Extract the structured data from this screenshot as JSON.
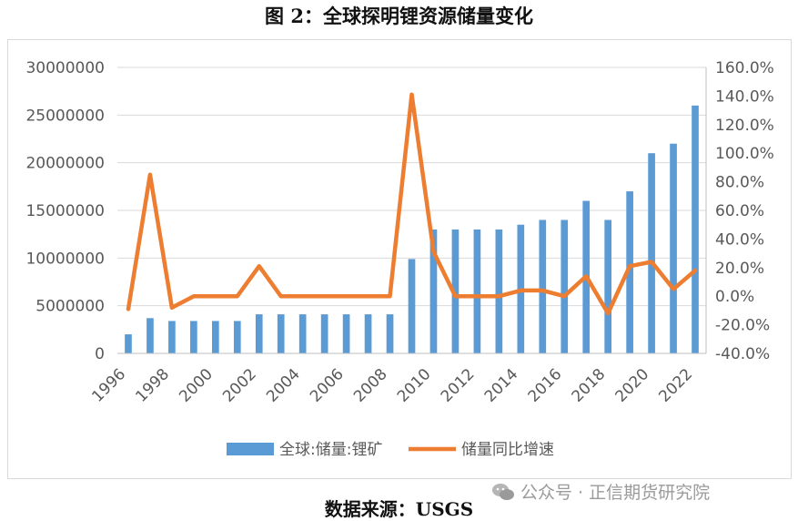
{
  "figure_title": "图 2：全球探明锂资源储量变化",
  "source_text": "数据来源：USGS",
  "watermark_text": "公众号 · 正信期货研究院",
  "colors": {
    "bar": "#5b9bd5",
    "line": "#ed7d31",
    "grid": "#d9d9d9",
    "text": "#595959"
  },
  "chart_data": {
    "type": "bar",
    "title": "",
    "xlabel": "",
    "ylabel": "",
    "x_tick_labels": [
      "1996",
      "1998",
      "2000",
      "2002",
      "2004",
      "2006",
      "2008",
      "2010",
      "2012",
      "2014",
      "2016",
      "2018",
      "2020",
      "2022"
    ],
    "years": [
      1996,
      1997,
      1998,
      1999,
      2000,
      2001,
      2002,
      2003,
      2004,
      2005,
      2006,
      2007,
      2008,
      2009,
      2010,
      2011,
      2012,
      2013,
      2014,
      2015,
      2016,
      2017,
      2018,
      2019,
      2020,
      2021,
      2022
    ],
    "ylim_left": [
      0,
      30000000
    ],
    "ylim_right": [
      -0.4,
      1.6
    ],
    "y_left_ticks": [
      "0",
      "5000000",
      "10000000",
      "15000000",
      "20000000",
      "25000000",
      "30000000"
    ],
    "y_right_ticks": [
      "-40.0%",
      "-20.0%",
      "0.0%",
      "20.0%",
      "40.0%",
      "60.0%",
      "80.0%",
      "100.0%",
      "120.0%",
      "140.0%",
      "160.0%"
    ],
    "grid": true,
    "legend_position": "bottom",
    "series": [
      {
        "name": "全球:储量:锂矿",
        "type": "bar",
        "axis": "left",
        "values": [
          2000000,
          3700000,
          3400000,
          3400000,
          3400000,
          3400000,
          4100000,
          4100000,
          4100000,
          4100000,
          4100000,
          4100000,
          4100000,
          9900000,
          13000000,
          13000000,
          13000000,
          13000000,
          13500000,
          14000000,
          14000000,
          16000000,
          14000000,
          17000000,
          21000000,
          22000000,
          26000000
        ]
      },
      {
        "name": "储量同比增速",
        "type": "line",
        "axis": "right",
        "values": [
          -0.09,
          0.85,
          -0.08,
          0.0,
          0.0,
          0.0,
          0.21,
          0.0,
          0.0,
          0.0,
          0.0,
          0.0,
          0.0,
          1.41,
          0.31,
          0.0,
          0.0,
          0.0,
          0.04,
          0.04,
          0.0,
          0.14,
          -0.12,
          0.21,
          0.24,
          0.05,
          0.18
        ]
      }
    ]
  }
}
